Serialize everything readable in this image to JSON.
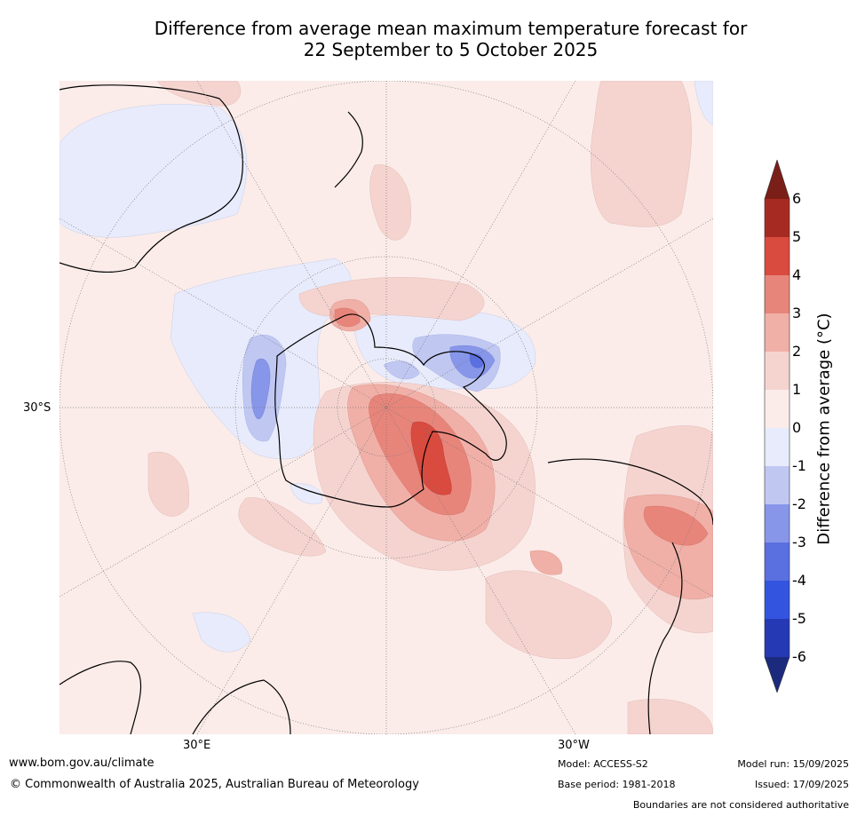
{
  "title_line1": "Difference from average mean maximum temperature forecast for",
  "title_line2": "22 September to 5 October 2025",
  "axis_labels": {
    "lat": "30°S",
    "lon_east": "30°E",
    "lon_west": "30°W"
  },
  "colorbar": {
    "label": "Difference from average (°C)",
    "ticks": [
      "6",
      "5",
      "4",
      "3",
      "2",
      "1",
      "0",
      "-1",
      "-2",
      "-3",
      "-4",
      "-5",
      "-6"
    ],
    "colors": {
      "over": "#7a1f18",
      "c5_6": "#a62a21",
      "c4_5": "#d94a3f",
      "c3_4": "#e8857b",
      "c2_3": "#f0b0a7",
      "c1_2": "#f5d4d0",
      "c0_1": "#fbece9",
      "cm1_0": "#e8ebfb",
      "cm2_m1": "#c0c8f2",
      "cm3_m2": "#8796e8",
      "cm4_m3": "#5a6fe0",
      "cm5_m4": "#3254de",
      "cm6_m5": "#2639b5",
      "under": "#1c2a7d"
    }
  },
  "footer": {
    "website": "www.bom.gov.au/climate",
    "copyright": "© Commonwealth of Australia 2025, Australian Bureau of Meteorology",
    "model": "Model: ACCESS-S2",
    "base_period": "Base period: 1981-2018",
    "model_run": "Model run: 15/09/2025",
    "issued": "Issued: 17/09/2025",
    "boundaries": "Boundaries are not considered authoritative"
  }
}
